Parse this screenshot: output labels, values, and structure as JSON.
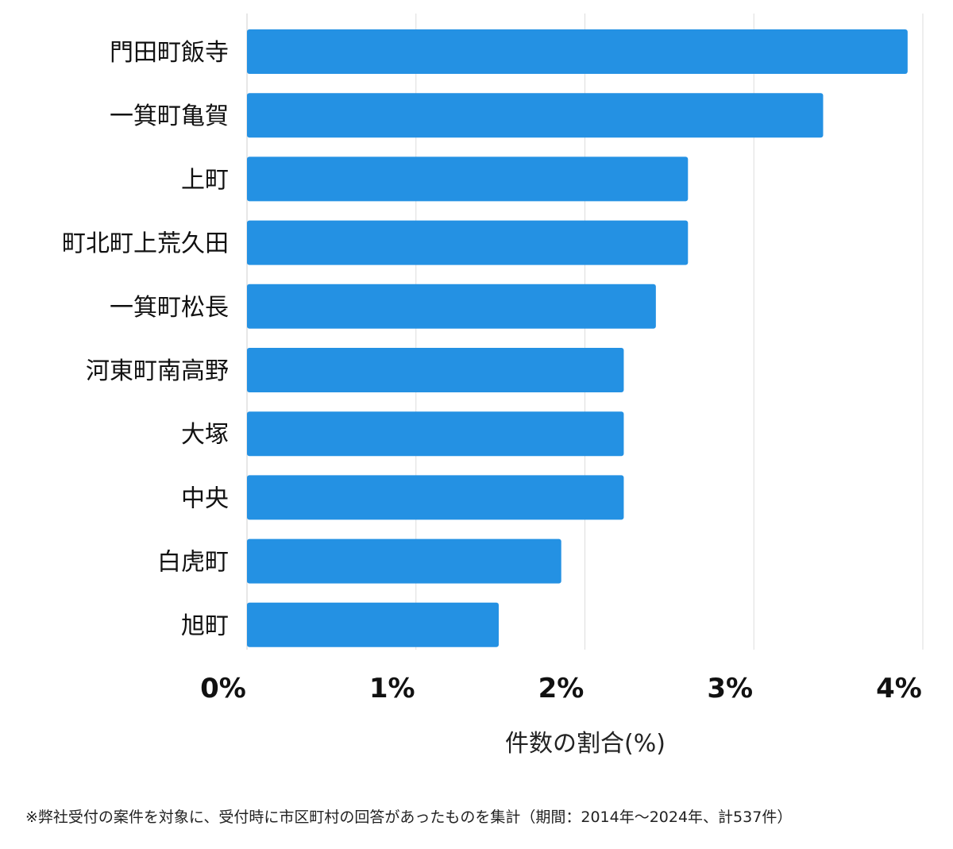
{
  "chart_data": {
    "type": "bar",
    "orientation": "horizontal",
    "categories": [
      "門田町飯寺",
      "一箕町亀賀",
      "上町",
      "町北町上荒久田",
      "一箕町松長",
      "河東町南高野",
      "大塚",
      "中央",
      "白虎町",
      "旭町"
    ],
    "values": [
      3.91,
      3.41,
      2.61,
      2.61,
      2.42,
      2.23,
      2.23,
      2.23,
      1.86,
      1.49
    ],
    "xlabel": "件数の割合(%)",
    "ylabel": "",
    "title": "",
    "xlim": [
      0,
      4
    ],
    "xticks": [
      0,
      1,
      2,
      3,
      4
    ],
    "xtick_labels": [
      "0%",
      "1%",
      "2%",
      "3%",
      "4%"
    ],
    "grid": "vertical",
    "bar_color": "#2491E3",
    "legend": "none"
  },
  "footnote": "※弊社受付の案件を対象に、受付時に市区町村の回答があったものを集計（期間：2014年～2024年、計537件）"
}
